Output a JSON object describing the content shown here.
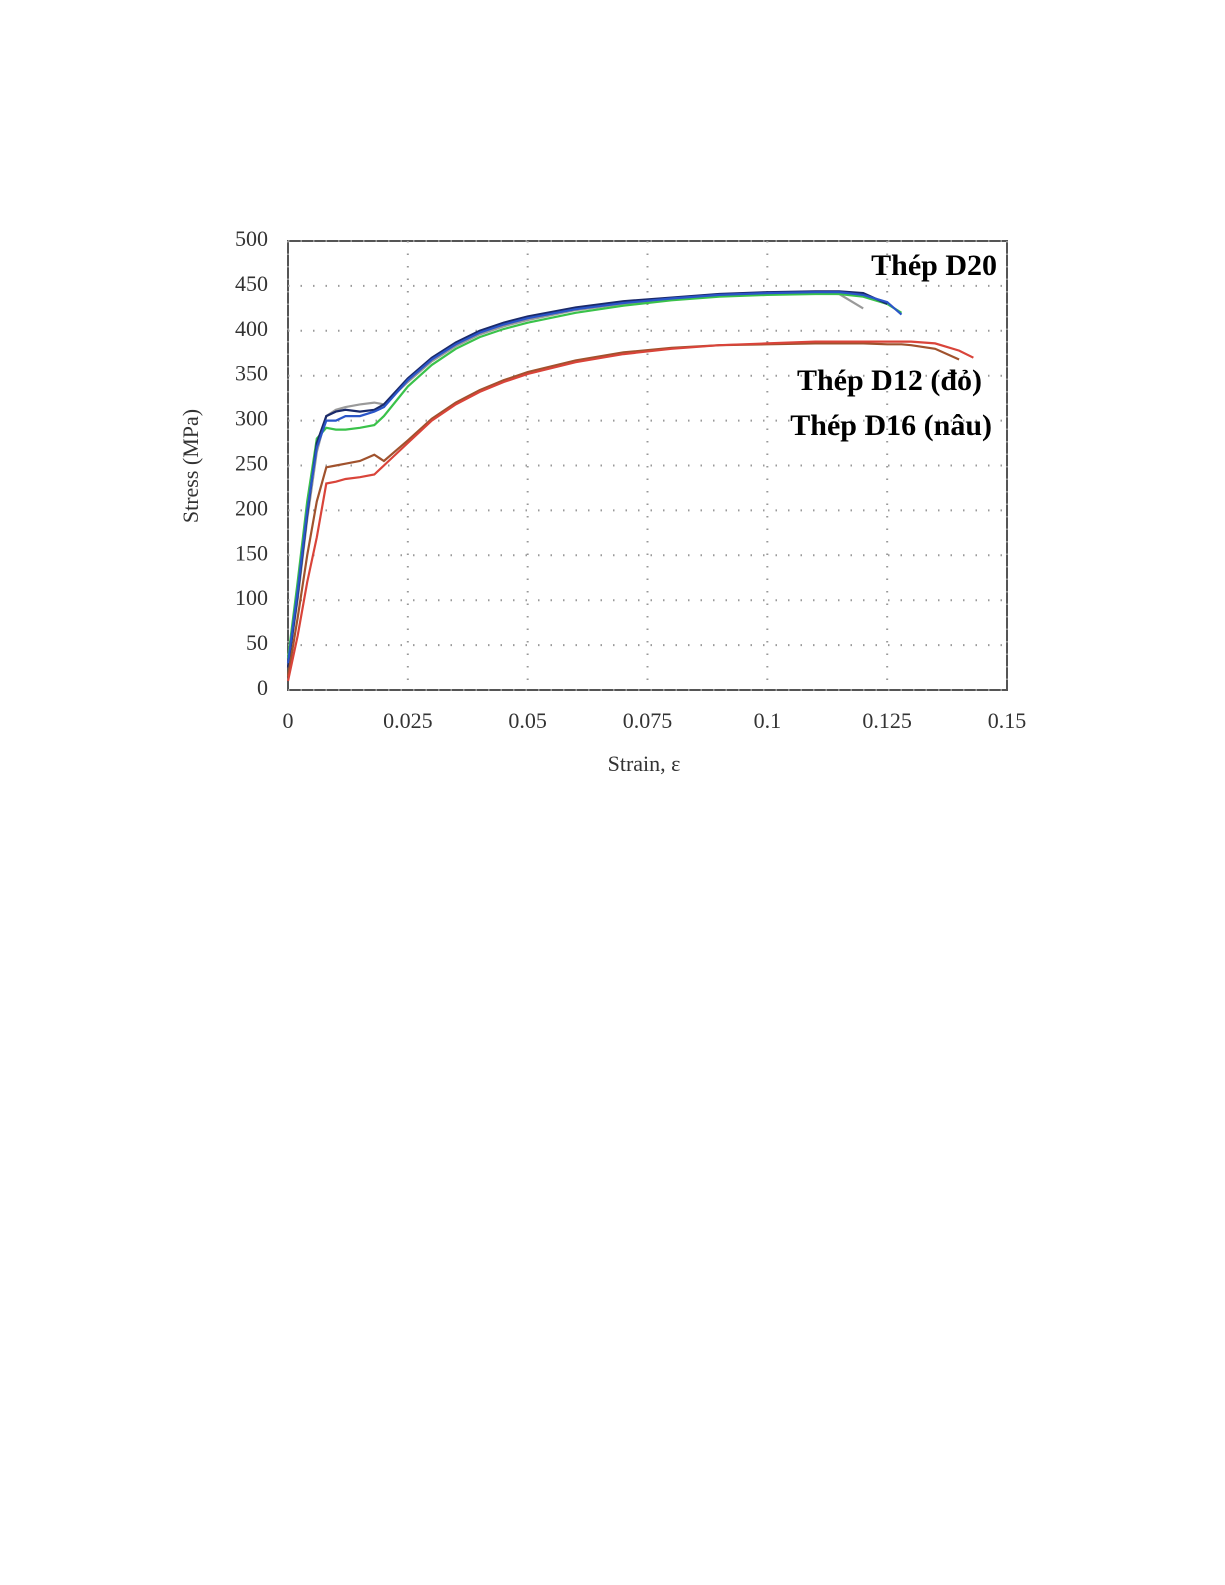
{
  "chart_data": {
    "type": "line",
    "x_label": "Strain, ε",
    "y_label": "Stress (MPa)",
    "annotations": [
      "Thép D20",
      "Thép D12 (đỏ)",
      "Thép D16 (nâu)"
    ],
    "xlim": [
      0,
      0.15
    ],
    "xticks": [
      0,
      0.025,
      0.05,
      0.075,
      0.1,
      0.125,
      0.15
    ],
    "ylim": [
      0,
      500
    ],
    "yticks": [
      0,
      50,
      100,
      150,
      200,
      250,
      300,
      350,
      400,
      450,
      500
    ],
    "grid": true,
    "x": [
      0,
      0.002,
      0.004,
      0.006,
      0.008,
      0.01,
      0.012,
      0.015,
      0.018,
      0.02,
      0.025,
      0.03,
      0.035,
      0.04,
      0.045,
      0.05,
      0.06,
      0.07,
      0.08,
      0.09,
      0.1,
      0.11,
      0.115,
      0.12,
      0.125,
      0.128,
      0.13,
      0.135,
      0.14,
      0.143
    ],
    "series": [
      {
        "color": "#9a9a9a",
        "values": [
          28,
          100,
          190,
          265,
          305,
          312,
          315,
          318,
          320,
          318,
          343,
          366,
          383,
          396,
          405,
          412,
          423,
          430,
          435,
          439,
          441,
          442,
          441,
          425,
          null,
          null,
          null,
          null,
          null,
          null
        ]
      },
      {
        "color": "#3ac24a",
        "values": [
          35,
          120,
          210,
          280,
          292,
          290,
          290,
          292,
          295,
          305,
          338,
          362,
          380,
          393,
          402,
          409,
          420,
          428,
          434,
          438,
          440,
          441,
          441,
          438,
          430,
          420,
          null,
          null,
          null,
          null
        ]
      },
      {
        "color": "#1a2a6a",
        "values": [
          25,
          105,
          195,
          275,
          305,
          310,
          312,
          310,
          312,
          318,
          347,
          370,
          387,
          400,
          409,
          416,
          426,
          433,
          437,
          441,
          443,
          444,
          444,
          442,
          430,
          null,
          null,
          null,
          null,
          null
        ]
      },
      {
        "color": "#2a55c8",
        "values": [
          30,
          110,
          200,
          270,
          300,
          300,
          305,
          305,
          310,
          315,
          345,
          368,
          385,
          398,
          407,
          414,
          424,
          431,
          436,
          440,
          442,
          443,
          443,
          440,
          432,
          418,
          null,
          null,
          null,
          null
        ]
      },
      {
        "color": "#a0522d",
        "values": [
          15,
          80,
          150,
          210,
          248,
          250,
          252,
          255,
          262,
          255,
          278,
          302,
          320,
          334,
          345,
          354,
          367,
          376,
          381,
          384,
          385,
          386,
          386,
          386,
          385,
          385,
          384,
          380,
          368,
          null
        ]
      },
      {
        "color": "#d9443a",
        "values": [
          10,
          60,
          120,
          170,
          230,
          232,
          235,
          237,
          240,
          250,
          275,
          300,
          318,
          332,
          343,
          352,
          365,
          374,
          380,
          384,
          386,
          388,
          388,
          388,
          388,
          388,
          388,
          386,
          378,
          370
        ]
      }
    ]
  }
}
